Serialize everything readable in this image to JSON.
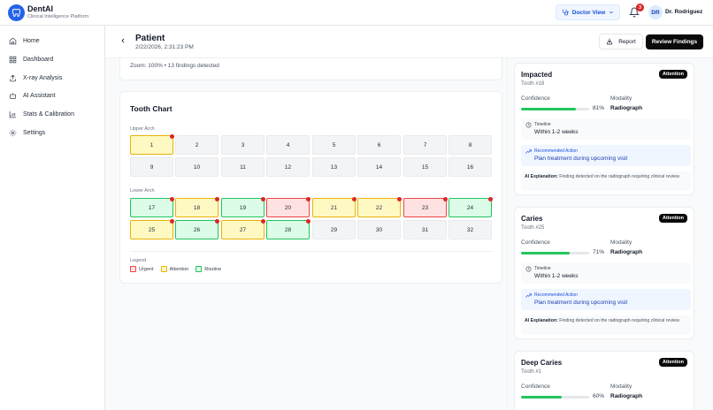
{
  "app": {
    "name": "DentAI",
    "subtitle": "Clinical Intelligence Platform"
  },
  "topbar": {
    "view_label": "Doctor View",
    "notifications_count": "3",
    "user_initials": "DR",
    "user_name": "Dr. Rodriguez"
  },
  "sidebar": {
    "items": [
      {
        "label": "Home",
        "icon": "home-icon"
      },
      {
        "label": "Dashboard",
        "icon": "dashboard-icon"
      },
      {
        "label": "X-ray Analysis",
        "icon": "upload-icon"
      },
      {
        "label": "AI Assistant",
        "icon": "bot-icon"
      },
      {
        "label": "Stats & Calibration",
        "icon": "chart-icon"
      },
      {
        "label": "Settings",
        "icon": "gear-icon"
      }
    ]
  },
  "page": {
    "title": "Patient",
    "date": "2/22/2026, 2:31:23 PM",
    "report_label": "Report",
    "review_label": "Review Findings"
  },
  "zoom_info": "Zoom: 100% • 13 findings detected",
  "tooth_chart": {
    "title": "Tooth Chart",
    "upper_label": "Upper Arch",
    "lower_label": "Lower Arch",
    "teeth": [
      {
        "n": "1",
        "status": "attention",
        "flag": true
      },
      {
        "n": "2",
        "status": "none",
        "flag": false
      },
      {
        "n": "3",
        "status": "none",
        "flag": false
      },
      {
        "n": "4",
        "status": "none",
        "flag": false
      },
      {
        "n": "5",
        "status": "none",
        "flag": false
      },
      {
        "n": "6",
        "status": "none",
        "flag": false
      },
      {
        "n": "7",
        "status": "none",
        "flag": false
      },
      {
        "n": "8",
        "status": "none",
        "flag": false
      },
      {
        "n": "9",
        "status": "none",
        "flag": false
      },
      {
        "n": "10",
        "status": "none",
        "flag": false
      },
      {
        "n": "11",
        "status": "none",
        "flag": false
      },
      {
        "n": "12",
        "status": "none",
        "flag": false
      },
      {
        "n": "13",
        "status": "none",
        "flag": false
      },
      {
        "n": "14",
        "status": "none",
        "flag": false
      },
      {
        "n": "15",
        "status": "none",
        "flag": false
      },
      {
        "n": "16",
        "status": "none",
        "flag": false
      },
      {
        "n": "17",
        "status": "routine",
        "flag": true
      },
      {
        "n": "18",
        "status": "attention",
        "flag": true
      },
      {
        "n": "19",
        "status": "routine",
        "flag": true
      },
      {
        "n": "20",
        "status": "urgent",
        "flag": true
      },
      {
        "n": "21",
        "status": "attention",
        "flag": true
      },
      {
        "n": "22",
        "status": "attention",
        "flag": true
      },
      {
        "n": "23",
        "status": "urgent",
        "flag": true
      },
      {
        "n": "24",
        "status": "routine",
        "flag": true
      },
      {
        "n": "25",
        "status": "attention",
        "flag": true
      },
      {
        "n": "26",
        "status": "routine",
        "flag": true
      },
      {
        "n": "27",
        "status": "attention",
        "flag": true
      },
      {
        "n": "28",
        "status": "routine",
        "flag": true
      },
      {
        "n": "29",
        "status": "none",
        "flag": false
      },
      {
        "n": "30",
        "status": "none",
        "flag": false
      },
      {
        "n": "31",
        "status": "none",
        "flag": false
      },
      {
        "n": "32",
        "status": "none",
        "flag": false
      }
    ],
    "legend": {
      "title": "Legend",
      "items": [
        {
          "label": "Urgent",
          "color": "#ef4444",
          "bg": "#fee2e2"
        },
        {
          "label": "Attention",
          "color": "#eab308",
          "bg": "#fef9c3"
        },
        {
          "label": "Routine",
          "color": "#22c55e",
          "bg": "#dcfce7"
        }
      ]
    }
  },
  "findings": [
    {
      "title": "Impacted",
      "tooth": "Tooth #18",
      "badge": "Attention",
      "confidence_label": "Confidence",
      "confidence": 81,
      "confidence_text": "81%",
      "modality_label": "Modality",
      "modality": "Radiograph",
      "timeline_label": "Timeline",
      "timeline": "Within 1-2 weeks",
      "action_label": "Recommended Action",
      "action": "Plan treatment during upcoming visit",
      "explanation_label": "AI Explanation:",
      "explanation": "Finding detected on the radiograph requiring clinical review."
    },
    {
      "title": "Caries",
      "tooth": "Tooth #25",
      "badge": "Attention",
      "confidence_label": "Confidence",
      "confidence": 71,
      "confidence_text": "71%",
      "modality_label": "Modality",
      "modality": "Radiograph",
      "timeline_label": "Timeline",
      "timeline": "Within 1-2 weeks",
      "action_label": "Recommended Action",
      "action": "Plan treatment during upcoming visit",
      "explanation_label": "AI Explanation:",
      "explanation": "Finding detected on the radiograph requiring clinical review."
    },
    {
      "title": "Deep Caries",
      "tooth": "Tooth #1",
      "badge": "Attention",
      "confidence_label": "Confidence",
      "confidence": 60,
      "confidence_text": "60%",
      "modality_label": "Modality",
      "modality": "Radiograph"
    }
  ]
}
